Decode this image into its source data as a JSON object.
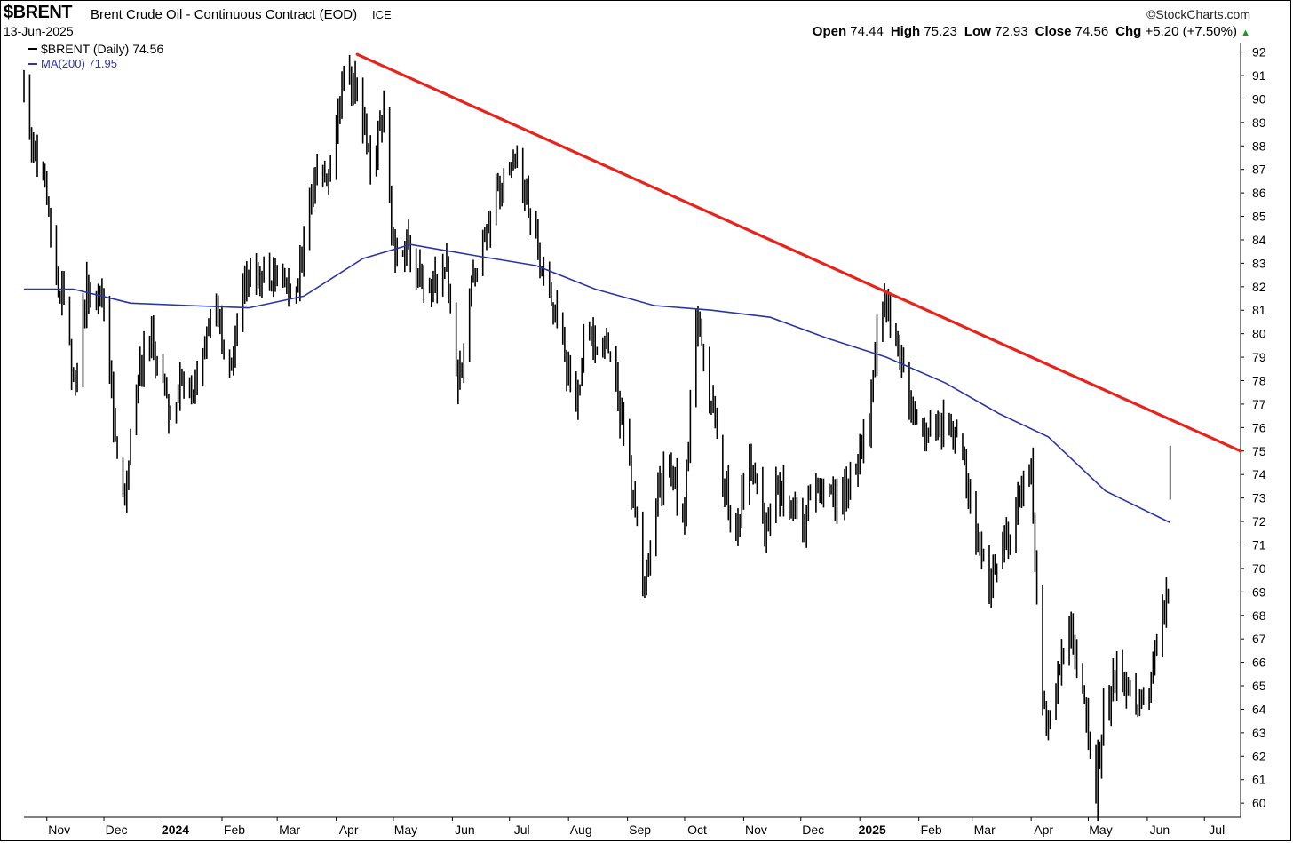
{
  "header": {
    "symbol": "$BRENT",
    "description": "Brent Crude Oil - Continuous Contract (EOD)",
    "exchange": "ICE",
    "logo": "StockCharts.com",
    "logo_icon": "copyright-icon",
    "date": "13-Jun-2025",
    "open_label": "Open",
    "open": "74.44",
    "high_label": "High",
    "high": "75.23",
    "low_label": "Low",
    "low": "72.93",
    "close_label": "Close",
    "close": "74.56",
    "chg_label": "Chg",
    "chg": "+5.20 (+7.50%)",
    "chg_icon": "up-triangle-icon"
  },
  "legend": {
    "price_label": "$BRENT (Daily) 74.56",
    "ma_label": "MA(200) 71.95"
  },
  "colors": {
    "price": "#000000",
    "ma": "#2b35a6",
    "trendline": "#e8231c",
    "up_arrow": "#1a9a1a"
  },
  "chart_data": {
    "type": "line",
    "style": "ohlc-bars",
    "ylim": [
      59.4,
      92.4
    ],
    "y_ticks": [
      60,
      61,
      62,
      63,
      64,
      65,
      66,
      67,
      68,
      69,
      70,
      71,
      72,
      73,
      74,
      75,
      76,
      77,
      78,
      79,
      80,
      81,
      82,
      83,
      84,
      85,
      86,
      87,
      88,
      89,
      90,
      91,
      92
    ],
    "x_tick_labels": [
      "Nov",
      "Dec",
      "2024",
      "Feb",
      "Mar",
      "Apr",
      "May",
      "Jun",
      "Jul",
      "Aug",
      "Sep",
      "Oct",
      "Nov",
      "Dec",
      "2025",
      "Feb",
      "Mar",
      "Apr",
      "May",
      "Jun",
      "Jul"
    ],
    "x_tick_dates": [
      "2023-11-01",
      "2023-12-01",
      "2024-01-01",
      "2024-02-01",
      "2024-03-01",
      "2024-04-01",
      "2024-05-01",
      "2024-06-01",
      "2024-07-01",
      "2024-08-01",
      "2024-09-01",
      "2024-10-01",
      "2024-11-01",
      "2024-12-01",
      "2025-01-01",
      "2025-02-01",
      "2025-03-01",
      "2025-04-01",
      "2025-05-01",
      "2025-06-01",
      "2025-07-01"
    ],
    "x_tick_bold": [
      false,
      false,
      true,
      false,
      false,
      false,
      false,
      false,
      false,
      false,
      false,
      false,
      false,
      false,
      true,
      false,
      false,
      false,
      false,
      false,
      false
    ],
    "xlim": [
      "2023-10-20",
      "2025-07-20"
    ],
    "grid": false,
    "legend_position": "top-left",
    "price_series": {
      "name": "$BRENT (Daily)",
      "points": [
        {
          "date": "2023-10-20",
          "value": 90.5
        },
        {
          "date": "2023-10-24",
          "value": 88.0
        },
        {
          "date": "2023-10-30",
          "value": 87.0
        },
        {
          "date": "2023-11-03",
          "value": 84.5
        },
        {
          "date": "2023-11-07",
          "value": 81.6
        },
        {
          "date": "2023-11-10",
          "value": 81.4
        },
        {
          "date": "2023-11-16",
          "value": 77.4
        },
        {
          "date": "2023-11-22",
          "value": 81.9
        },
        {
          "date": "2023-11-30",
          "value": 82.0
        },
        {
          "date": "2023-12-05",
          "value": 77.6
        },
        {
          "date": "2023-12-08",
          "value": 75.0
        },
        {
          "date": "2023-12-12",
          "value": 73.2
        },
        {
          "date": "2023-12-18",
          "value": 77.7
        },
        {
          "date": "2023-12-22",
          "value": 79.0
        },
        {
          "date": "2023-12-27",
          "value": 79.7
        },
        {
          "date": "2024-01-03",
          "value": 76.8
        },
        {
          "date": "2024-01-10",
          "value": 77.8
        },
        {
          "date": "2024-01-17",
          "value": 77.5
        },
        {
          "date": "2024-01-24",
          "value": 80.2
        },
        {
          "date": "2024-01-31",
          "value": 80.5
        },
        {
          "date": "2024-02-06",
          "value": 78.2
        },
        {
          "date": "2024-02-12",
          "value": 82.0
        },
        {
          "date": "2024-02-19",
          "value": 82.4
        },
        {
          "date": "2024-02-27",
          "value": 82.5
        },
        {
          "date": "2024-03-05",
          "value": 82.0
        },
        {
          "date": "2024-03-12",
          "value": 81.8
        },
        {
          "date": "2024-03-19",
          "value": 86.5
        },
        {
          "date": "2024-03-26",
          "value": 86.2
        },
        {
          "date": "2024-04-02",
          "value": 89.0
        },
        {
          "date": "2024-04-05",
          "value": 91.0
        },
        {
          "date": "2024-04-12",
          "value": 90.3
        },
        {
          "date": "2024-04-19",
          "value": 87.3
        },
        {
          "date": "2024-04-26",
          "value": 89.0
        },
        {
          "date": "2024-05-01",
          "value": 83.8
        },
        {
          "date": "2024-05-08",
          "value": 83.5
        },
        {
          "date": "2024-05-15",
          "value": 82.8
        },
        {
          "date": "2024-05-22",
          "value": 81.9
        },
        {
          "date": "2024-05-29",
          "value": 83.0
        },
        {
          "date": "2024-06-04",
          "value": 77.5
        },
        {
          "date": "2024-06-10",
          "value": 81.6
        },
        {
          "date": "2024-06-17",
          "value": 84.2
        },
        {
          "date": "2024-06-24",
          "value": 86.0
        },
        {
          "date": "2024-07-01",
          "value": 86.5
        },
        {
          "date": "2024-07-05",
          "value": 87.4
        },
        {
          "date": "2024-07-12",
          "value": 85.0
        },
        {
          "date": "2024-07-19",
          "value": 82.6
        },
        {
          "date": "2024-07-26",
          "value": 81.1
        },
        {
          "date": "2024-08-05",
          "value": 76.3
        },
        {
          "date": "2024-08-09",
          "value": 79.7
        },
        {
          "date": "2024-08-16",
          "value": 79.7
        },
        {
          "date": "2024-08-23",
          "value": 79.0
        },
        {
          "date": "2024-09-03",
          "value": 73.8
        },
        {
          "date": "2024-09-10",
          "value": 69.2
        },
        {
          "date": "2024-09-17",
          "value": 73.7
        },
        {
          "date": "2024-09-24",
          "value": 74.5
        },
        {
          "date": "2024-09-30",
          "value": 71.7
        },
        {
          "date": "2024-10-07",
          "value": 80.9
        },
        {
          "date": "2024-10-14",
          "value": 77.5
        },
        {
          "date": "2024-10-21",
          "value": 74.3
        },
        {
          "date": "2024-10-28",
          "value": 71.4
        },
        {
          "date": "2024-11-04",
          "value": 75.1
        },
        {
          "date": "2024-11-11",
          "value": 71.8
        },
        {
          "date": "2024-11-18",
          "value": 73.3
        },
        {
          "date": "2024-11-25",
          "value": 72.8
        },
        {
          "date": "2024-12-02",
          "value": 71.8
        },
        {
          "date": "2024-12-09",
          "value": 73.5
        },
        {
          "date": "2024-12-16",
          "value": 72.9
        },
        {
          "date": "2024-12-23",
          "value": 73.0
        },
        {
          "date": "2024-12-31",
          "value": 74.6
        },
        {
          "date": "2025-01-06",
          "value": 76.3
        },
        {
          "date": "2025-01-10",
          "value": 79.8
        },
        {
          "date": "2025-01-15",
          "value": 81.5
        },
        {
          "date": "2025-01-21",
          "value": 79.2
        },
        {
          "date": "2025-01-27",
          "value": 77.0
        },
        {
          "date": "2025-02-03",
          "value": 76.0
        },
        {
          "date": "2025-02-10",
          "value": 75.9
        },
        {
          "date": "2025-02-18",
          "value": 76.0
        },
        {
          "date": "2025-02-24",
          "value": 74.8
        },
        {
          "date": "2025-03-03",
          "value": 71.6
        },
        {
          "date": "2025-03-10",
          "value": 69.3
        },
        {
          "date": "2025-03-17",
          "value": 71.0
        },
        {
          "date": "2025-03-24",
          "value": 72.5
        },
        {
          "date": "2025-04-01",
          "value": 74.5
        },
        {
          "date": "2025-04-03",
          "value": 70.0
        },
        {
          "date": "2025-04-07",
          "value": 64.2
        },
        {
          "date": "2025-04-09",
          "value": 63.0
        },
        {
          "date": "2025-04-14",
          "value": 64.9
        },
        {
          "date": "2025-04-22",
          "value": 67.4
        },
        {
          "date": "2025-04-29",
          "value": 64.3
        },
        {
          "date": "2025-05-05",
          "value": 60.5
        },
        {
          "date": "2025-05-09",
          "value": 63.8
        },
        {
          "date": "2025-05-16",
          "value": 65.4
        },
        {
          "date": "2025-05-23",
          "value": 64.8
        },
        {
          "date": "2025-05-30",
          "value": 63.9
        },
        {
          "date": "2025-06-06",
          "value": 66.5
        },
        {
          "date": "2025-06-12",
          "value": 69.4
        },
        {
          "date": "2025-06-13",
          "value": 74.56
        }
      ]
    },
    "ma_series": {
      "name": "MA(200)",
      "points": [
        {
          "date": "2023-10-20",
          "value": 81.9
        },
        {
          "date": "2023-11-15",
          "value": 81.9
        },
        {
          "date": "2023-12-15",
          "value": 81.3
        },
        {
          "date": "2024-01-15",
          "value": 81.2
        },
        {
          "date": "2024-02-15",
          "value": 81.1
        },
        {
          "date": "2024-03-15",
          "value": 81.6
        },
        {
          "date": "2024-04-15",
          "value": 83.2
        },
        {
          "date": "2024-05-10",
          "value": 83.8
        },
        {
          "date": "2024-06-15",
          "value": 83.3
        },
        {
          "date": "2024-07-15",
          "value": 82.9
        },
        {
          "date": "2024-08-15",
          "value": 81.9
        },
        {
          "date": "2024-09-15",
          "value": 81.2
        },
        {
          "date": "2024-10-15",
          "value": 81.0
        },
        {
          "date": "2024-11-15",
          "value": 80.7
        },
        {
          "date": "2024-12-15",
          "value": 79.8
        },
        {
          "date": "2025-01-15",
          "value": 79.0
        },
        {
          "date": "2025-02-15",
          "value": 77.9
        },
        {
          "date": "2025-03-15",
          "value": 76.6
        },
        {
          "date": "2025-04-10",
          "value": 75.6
        },
        {
          "date": "2025-05-10",
          "value": 73.3
        },
        {
          "date": "2025-06-13",
          "value": 71.95
        }
      ]
    },
    "trendline": {
      "start": {
        "date": "2024-04-12",
        "value": 91.9
      },
      "end": {
        "date": "2025-07-20",
        "value": 75.0
      }
    }
  }
}
